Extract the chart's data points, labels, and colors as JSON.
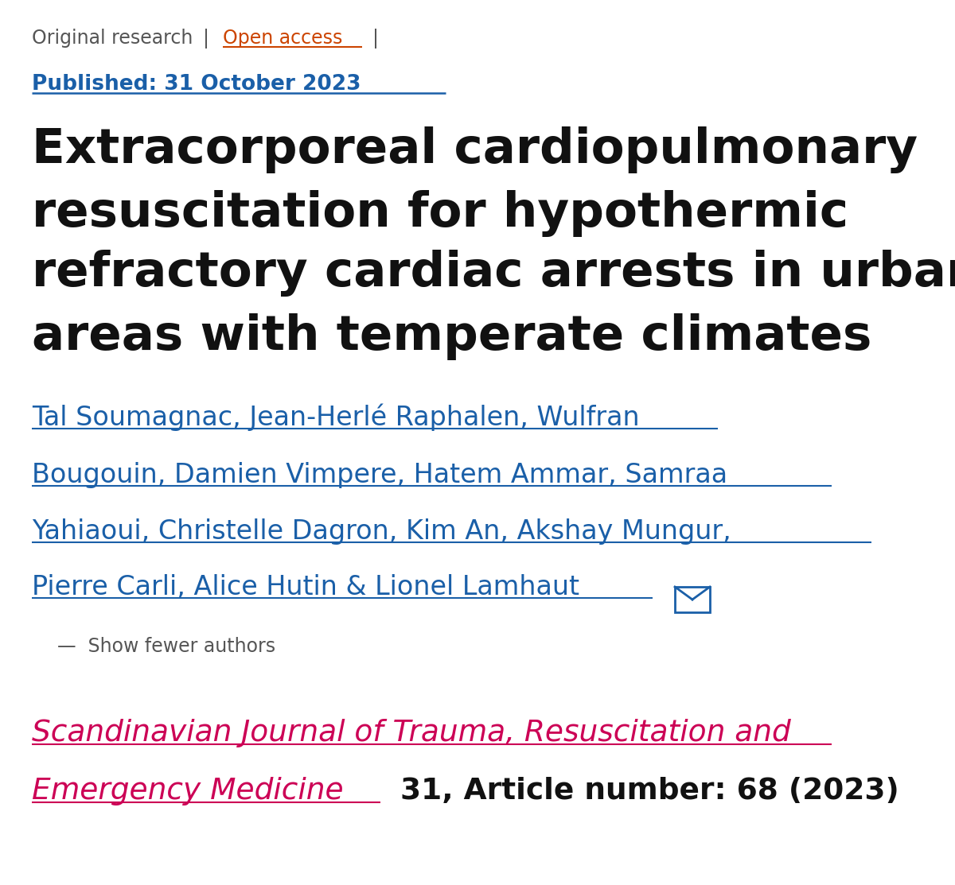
{
  "bg_color": "#ffffff",
  "label_color": "#555555",
  "link_color_blue": "#1a5fa8",
  "link_color_orange": "#cc4400",
  "link_color_red": "#cc0055",
  "title_color": "#111111",
  "separator_color": "#555555",
  "tag_original": "Original research",
  "tag_separator": "|",
  "tag_open_access": "Open access",
  "tag_separator2": "|",
  "published": "Published: 31 October 2023",
  "main_title_line1": "Extracorporeal cardiopulmonary",
  "main_title_line2": "resuscitation for hypothermic",
  "main_title_line3": "refractory cardiac arrests in urban",
  "main_title_line4": "areas with temperate climates",
  "authors_line1": "Tal Soumagnac, Jean-Herlé Raphalen, Wulfran",
  "authors_line2": "Bougouin, Damien Vimpere, Hatem Ammar, Samraa",
  "authors_line3": "Yahiaoui, Christelle Dagron, Kim An, Akshay Mungur,",
  "authors_line4": "Pierre Carli, Alice Hutin & Lionel Lamhaut",
  "show_fewer": "—  Show fewer authors",
  "journal_line1": "Scandinavian Journal of Trauma, Resuscitation and",
  "journal_line2": "Emergency Medicine",
  "journal_extra": " 31, Article number: 68 (2023)"
}
